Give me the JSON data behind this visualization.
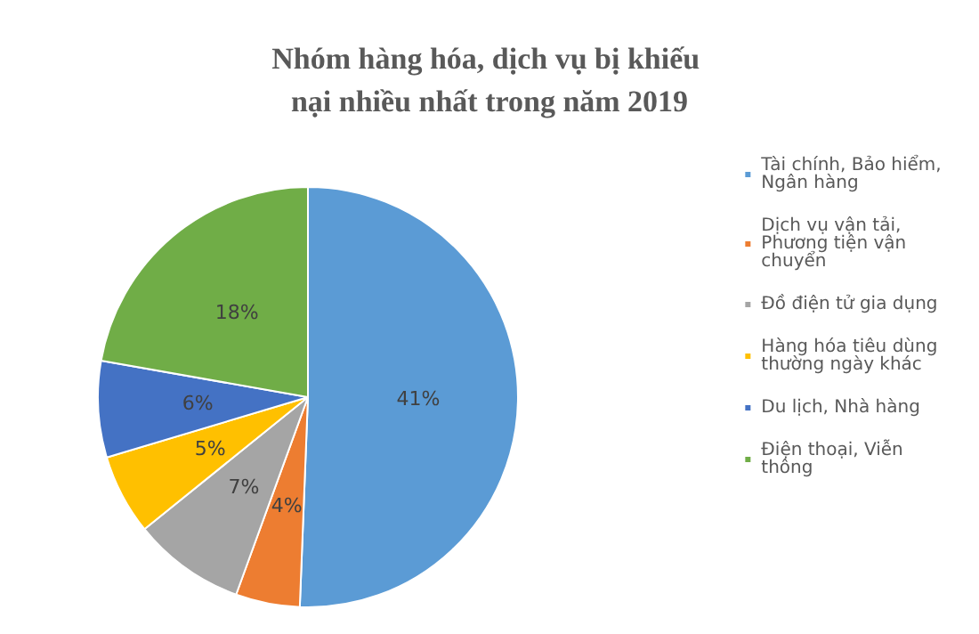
{
  "chart_data": {
    "type": "pie",
    "title": "Nhóm hàng hóa, dịch vụ bị khiếu nại nhiều nhất trong năm 2019",
    "categories": [
      "Tài chính, Bảo hiểm, Ngân hàng",
      "Dịch vụ vận tải, Phương tiện vận chuyển",
      "Đồ điện tử gia dụng",
      "Hàng hóa tiêu dùng thường ngày khác",
      "Du lịch, Nhà hàng",
      "Điện thoại, Viễn thông"
    ],
    "values": [
      41,
      4,
      7,
      5,
      6,
      18
    ],
    "value_labels": [
      "41%",
      "4%",
      "7%",
      "5%",
      "6%",
      "18%"
    ],
    "colors": [
      "#5b9bd5",
      "#ed7d31",
      "#a5a5a5",
      "#ffc000",
      "#4472c4",
      "#70ad47"
    ],
    "legend": "right"
  }
}
